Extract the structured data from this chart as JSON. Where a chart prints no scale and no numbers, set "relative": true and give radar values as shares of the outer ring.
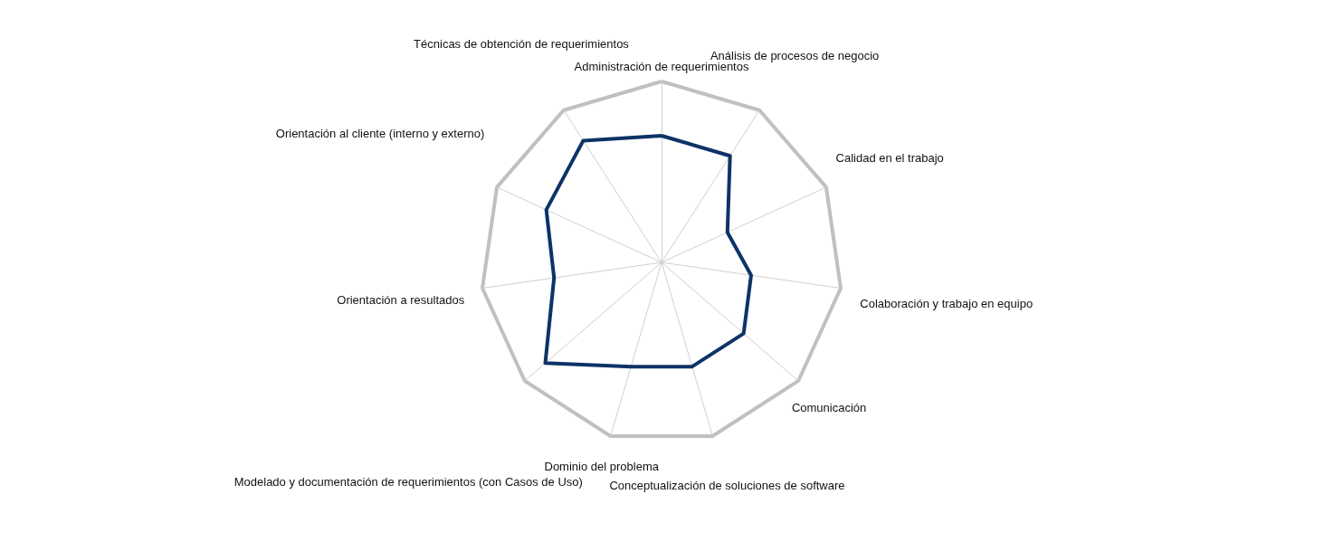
{
  "chart_data": {
    "type": "radar",
    "relative": true,
    "categories": [
      "Administración de requerimientos",
      "Análisis de procesos de negocio",
      "Calidad en el trabajo",
      "Colaboración y trabajo en equipo",
      "Comunicación",
      "Conceptualización de soluciones de software",
      "Dominio del problema",
      "Modelado y documentación de requerimientos (con Casos de Uso)",
      "Orientación a resultados",
      "Orientación al cliente (interno y externo)",
      "Técnicas de obtención de requerimientos"
    ],
    "series": [
      {
        "color": "#0d3367",
        "values": [
          0.7,
          0.7,
          0.4,
          0.5,
          0.6,
          0.6,
          0.6,
          0.85,
          0.6,
          0.7,
          0.8
        ]
      }
    ],
    "marker": "none",
    "line_style": "solid"
  }
}
